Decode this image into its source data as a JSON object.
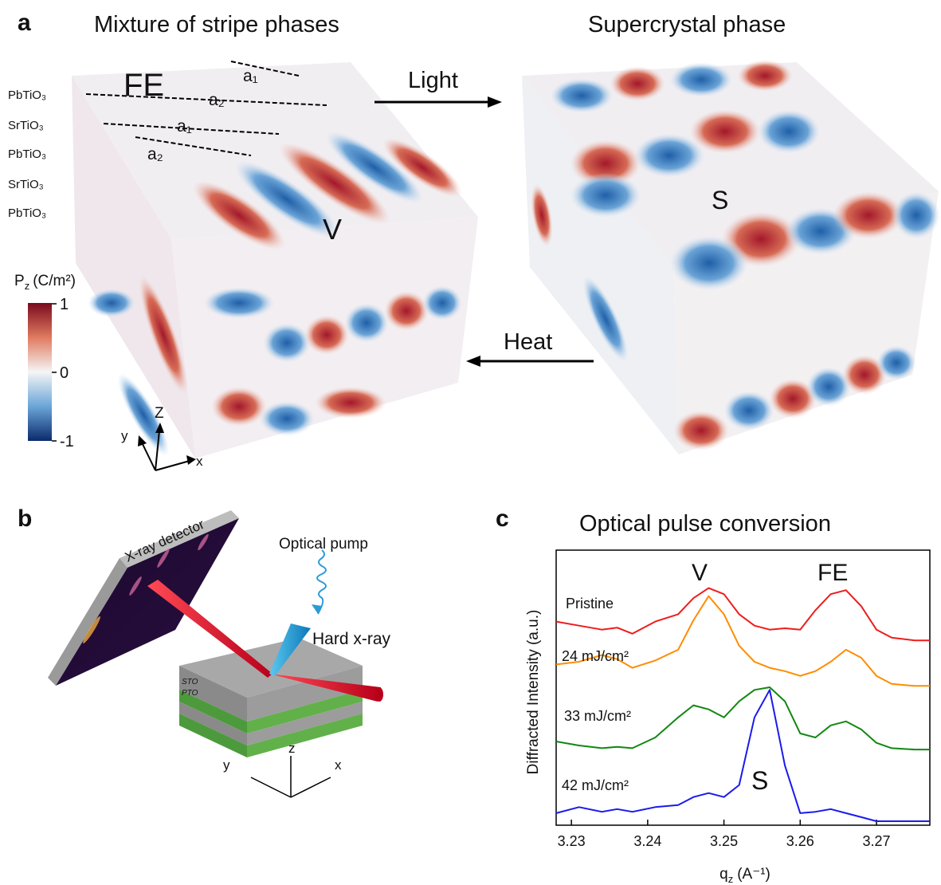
{
  "panel_a": {
    "letter": "a",
    "title_left": "Mixture of stripe phases",
    "title_right": "Supercrystal phase",
    "layers": [
      "PbTiO₃",
      "SrTiO₃",
      "PbTiO₃",
      "SrTiO₃",
      "PbTiO₃"
    ],
    "stripe_labels": [
      "a₁",
      "a₂",
      "a₁",
      "a₂"
    ],
    "phase_labels": {
      "fe": "FE",
      "v": "V",
      "s": "S"
    },
    "arrows": {
      "light": "Light",
      "heat": "Heat"
    },
    "colorbar": {
      "symbol": "P",
      "subscript": "z",
      "unit": "(C/m²)",
      "lim": [
        -1,
        1
      ],
      "ticks": [
        1,
        0,
        -1
      ]
    },
    "axes": {
      "z": "Z",
      "y": "y",
      "x": "x"
    }
  },
  "panel_b": {
    "letter": "b",
    "detector": "X-ray detector",
    "pump": "Optical pump",
    "xray": "Hard x-ray",
    "layers": [
      "STO",
      "PTO"
    ],
    "axes": {
      "z": "z",
      "y": "y",
      "x": "x"
    }
  },
  "chart_data": {
    "type": "line",
    "letter": "c",
    "title": "Optical pulse conversion",
    "ylabel": "Diffracted Intensity (a.u.)",
    "xlabel_symbol": "q",
    "xlabel_subscript": "z",
    "xlabel_unit": "(A⁻¹)",
    "x": [
      3.228,
      3.231,
      3.234,
      3.236,
      3.238,
      3.241,
      3.244,
      3.246,
      3.248,
      3.25,
      3.252,
      3.254,
      3.256,
      3.258,
      3.26,
      3.262,
      3.264,
      3.266,
      3.268,
      3.27,
      3.272,
      3.275,
      3.277
    ],
    "xlim": [
      3.228,
      3.277
    ],
    "xticks": [
      3.23,
      3.24,
      3.25,
      3.26,
      3.27
    ],
    "ylim": [
      0,
      4
    ],
    "series": [
      {
        "name": "Pristine",
        "color": "#ee1c1c",
        "values": [
          3.04,
          2.98,
          2.92,
          2.95,
          2.86,
          3.04,
          3.15,
          3.39,
          3.54,
          3.45,
          3.15,
          2.98,
          2.92,
          2.94,
          2.92,
          3.21,
          3.45,
          3.51,
          3.27,
          2.92,
          2.8,
          2.76,
          2.76
        ]
      },
      {
        "name": "24 mJ/cm²",
        "color": "#ff8c00",
        "values": [
          2.4,
          2.44,
          2.54,
          2.48,
          2.35,
          2.46,
          2.62,
          3.06,
          3.42,
          3.15,
          2.68,
          2.44,
          2.35,
          2.3,
          2.23,
          2.3,
          2.44,
          2.62,
          2.5,
          2.23,
          2.11,
          2.08,
          2.08
        ]
      },
      {
        "name": "33 mJ/cm²",
        "color": "#118811",
        "values": [
          1.25,
          1.19,
          1.15,
          1.17,
          1.15,
          1.31,
          1.61,
          1.79,
          1.73,
          1.61,
          1.85,
          2.02,
          2.06,
          1.85,
          1.37,
          1.31,
          1.49,
          1.55,
          1.43,
          1.23,
          1.15,
          1.13,
          1.13
        ]
      },
      {
        "name": "42 mJ/cm²",
        "color": "#1a1aee",
        "values": [
          0.18,
          0.27,
          0.2,
          0.24,
          0.2,
          0.27,
          0.3,
          0.42,
          0.48,
          0.42,
          0.6,
          1.61,
          2.02,
          0.89,
          0.18,
          0.2,
          0.24,
          0.18,
          0.12,
          0.06,
          0.06,
          0.06,
          0.06
        ]
      }
    ],
    "annotations": [
      "V",
      "FE",
      "S"
    ]
  }
}
